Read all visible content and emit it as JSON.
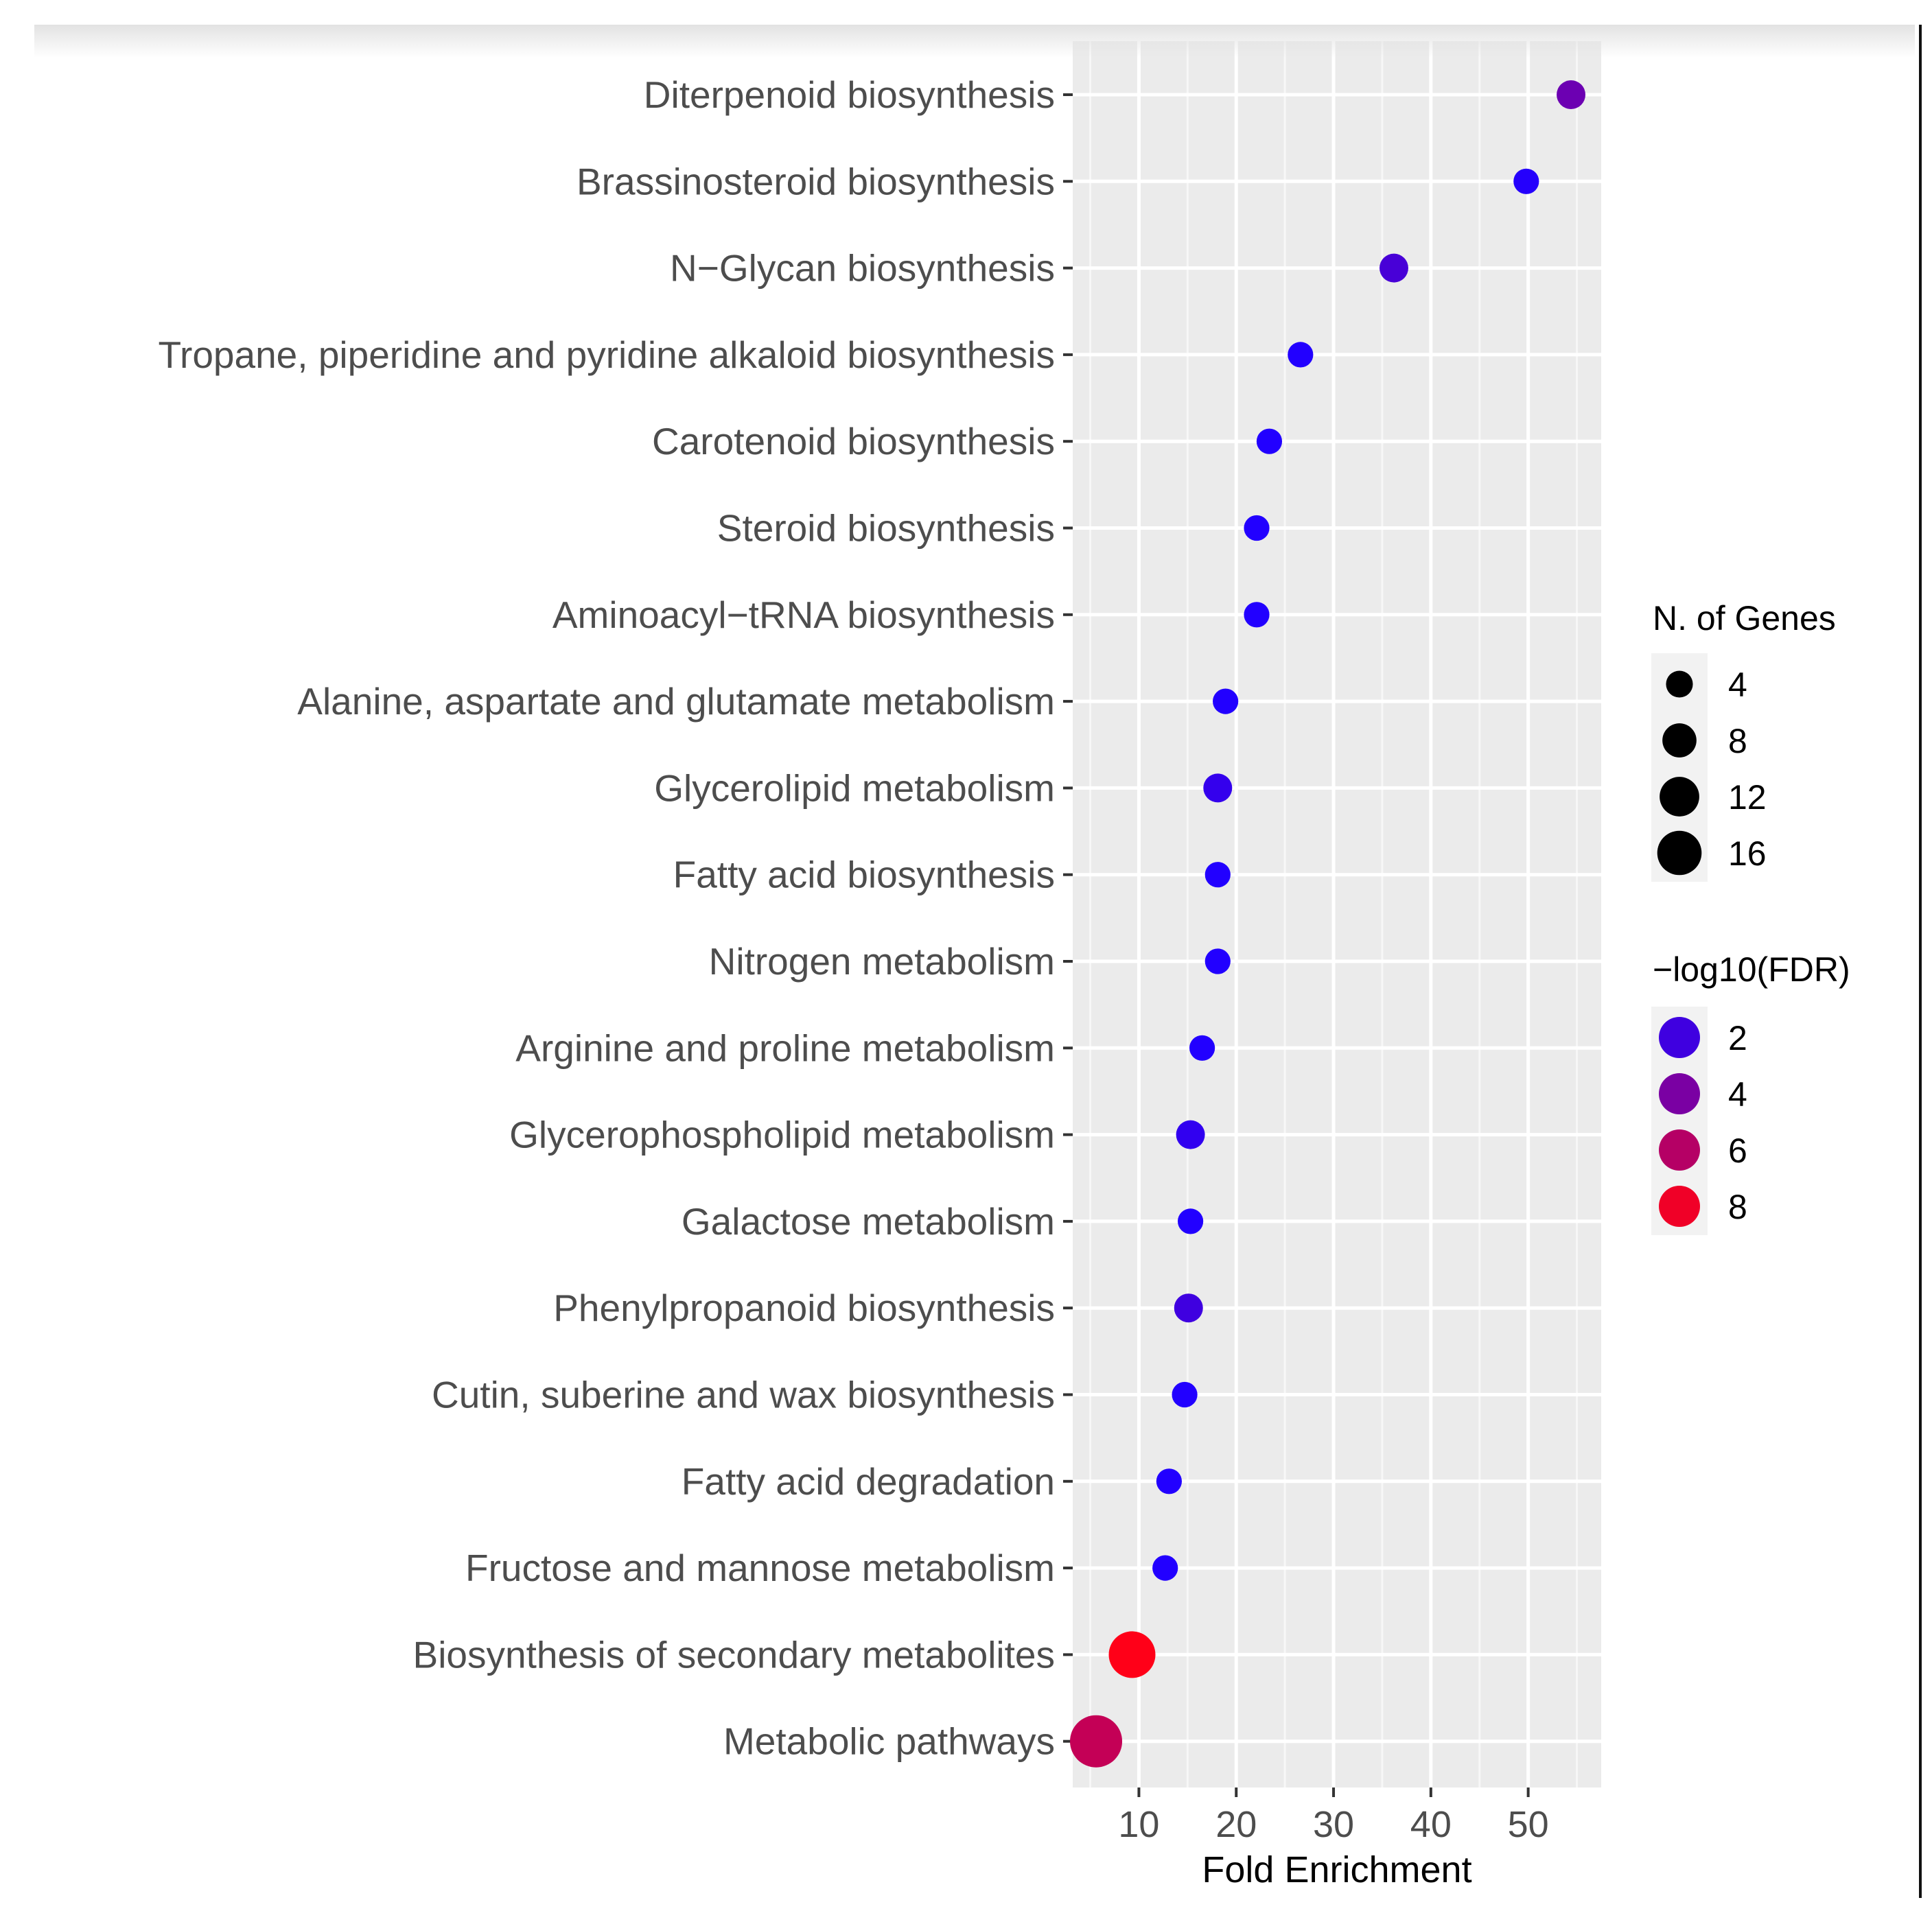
{
  "chart_data": {
    "type": "scatter",
    "xlabel": "Fold Enrichment",
    "ylabel": "",
    "xlim": [
      3.2,
      57.5
    ],
    "xticks": [
      10,
      20,
      30,
      40,
      50
    ],
    "grid": true,
    "categories": [
      "Diterpenoid biosynthesis",
      "Brassinosteroid biosynthesis",
      "N−Glycan biosynthesis",
      "Tropane, piperidine and pyridine alkaloid biosynthesis",
      "Carotenoid biosynthesis",
      "Steroid biosynthesis",
      "Aminoacyl−tRNA biosynthesis",
      "Alanine, aspartate and glutamate metabolism",
      "Glycerolipid metabolism",
      "Fatty acid biosynthesis",
      "Nitrogen metabolism",
      "Arginine and proline metabolism",
      "Glycerophospholipid metabolism",
      "Galactose metabolism",
      "Phenylpropanoid biosynthesis",
      "Cutin, suberine and wax biosynthesis",
      "Fatty acid degradation",
      "Fructose and mannose metabolism",
      "Biosynthesis of secondary metabolites",
      "Metabolic pathways"
    ],
    "points": [
      {
        "pathway": "Diterpenoid biosynthesis",
        "fold_enrichment": 54.4,
        "n_genes": 3,
        "neg_log10_fdr": 3.5
      },
      {
        "pathway": "Brassinosteroid biosynthesis",
        "fold_enrichment": 49.8,
        "n_genes": 2,
        "neg_log10_fdr": 1.1
      },
      {
        "pathway": "N−Glycan biosynthesis",
        "fold_enrichment": 36.2,
        "n_genes": 3,
        "neg_log10_fdr": 2.3
      },
      {
        "pathway": "Tropane, piperidine and pyridine alkaloid biosynthesis",
        "fold_enrichment": 26.6,
        "n_genes": 2,
        "neg_log10_fdr": 1.0
      },
      {
        "pathway": "Carotenoid biosynthesis",
        "fold_enrichment": 23.4,
        "n_genes": 2,
        "neg_log10_fdr": 1.0
      },
      {
        "pathway": "Steroid biosynthesis",
        "fold_enrichment": 22.1,
        "n_genes": 2,
        "neg_log10_fdr": 1.0
      },
      {
        "pathway": "Aminoacyl−tRNA biosynthesis",
        "fold_enrichment": 22.1,
        "n_genes": 2,
        "neg_log10_fdr": 1.0
      },
      {
        "pathway": "Alanine, aspartate and glutamate metabolism",
        "fold_enrichment": 18.9,
        "n_genes": 2,
        "neg_log10_fdr": 1.0
      },
      {
        "pathway": "Glycerolipid metabolism",
        "fold_enrichment": 18.1,
        "n_genes": 3,
        "neg_log10_fdr": 1.6
      },
      {
        "pathway": "Fatty acid biosynthesis",
        "fold_enrichment": 18.1,
        "n_genes": 2,
        "neg_log10_fdr": 1.0
      },
      {
        "pathway": "Nitrogen metabolism",
        "fold_enrichment": 18.1,
        "n_genes": 2,
        "neg_log10_fdr": 1.0
      },
      {
        "pathway": "Arginine and proline metabolism",
        "fold_enrichment": 16.5,
        "n_genes": 2,
        "neg_log10_fdr": 1.0
      },
      {
        "pathway": "Glycerophospholipid metabolism",
        "fold_enrichment": 15.3,
        "n_genes": 3,
        "neg_log10_fdr": 1.5
      },
      {
        "pathway": "Galactose metabolism",
        "fold_enrichment": 15.3,
        "n_genes": 2,
        "neg_log10_fdr": 1.0
      },
      {
        "pathway": "Phenylpropanoid biosynthesis",
        "fold_enrichment": 15.1,
        "n_genes": 3,
        "neg_log10_fdr": 2.0
      },
      {
        "pathway": "Cutin, suberine and wax biosynthesis",
        "fold_enrichment": 14.7,
        "n_genes": 2,
        "neg_log10_fdr": 1.0
      },
      {
        "pathway": "Fatty acid degradation",
        "fold_enrichment": 13.1,
        "n_genes": 2,
        "neg_log10_fdr": 1.0
      },
      {
        "pathway": "Fructose and mannose metabolism",
        "fold_enrichment": 12.7,
        "n_genes": 2,
        "neg_log10_fdr": 1.0
      },
      {
        "pathway": "Biosynthesis of secondary metabolites",
        "fold_enrichment": 9.3,
        "n_genes": 12,
        "neg_log10_fdr": 8.5
      },
      {
        "pathway": "Metabolic pathways",
        "fold_enrichment": 5.6,
        "n_genes": 16,
        "neg_log10_fdr": 6.5
      }
    ],
    "legend": {
      "position": "right",
      "size": {
        "title": "N. of Genes",
        "values": [
          4,
          8,
          12,
          16
        ]
      },
      "color": {
        "title": "−log10(FDR)",
        "values": [
          2,
          4,
          6,
          8
        ],
        "low_color": "#2200ff",
        "high_color": "#ff0018",
        "domain": [
          1.0,
          8.5
        ]
      }
    }
  }
}
